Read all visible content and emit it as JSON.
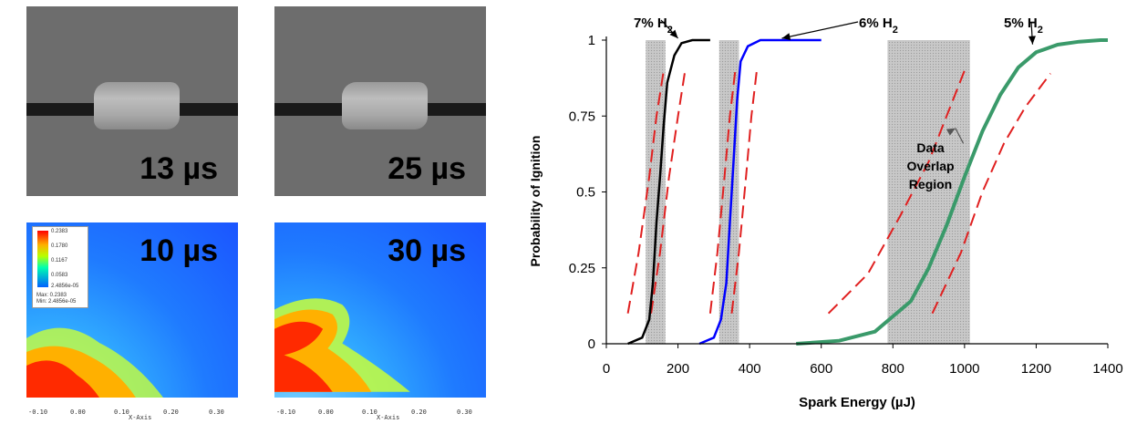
{
  "photos": [
    {
      "label": "13 µs"
    },
    {
      "label": "25 µs"
    }
  ],
  "simulations": [
    {
      "label": "10 µs"
    },
    {
      "label": "30 µs"
    }
  ],
  "sim_legend": {
    "values": [
      "0.2383",
      "0.1780",
      "0.1167",
      "0.0583",
      "2.4856e-05"
    ],
    "max": "Max: 0.2383",
    "min": "Min: 2.4856e-05"
  },
  "sim_axis": {
    "ticks": [
      "-0.10",
      "0.00",
      "0.10",
      "0.20",
      "0.30"
    ],
    "xlabel": "X-Axis"
  },
  "chart_data": {
    "type": "line",
    "xlabel": "Spark Energy (µJ)",
    "ylabel": "Probability of Ignition",
    "xlim": [
      0,
      1400
    ],
    "ylim": [
      0,
      1
    ],
    "xticks": [
      0,
      200,
      400,
      600,
      800,
      1000,
      1200,
      1400
    ],
    "yticks": [
      0,
      0.25,
      0.5,
      0.75,
      1
    ],
    "ytick_labels": [
      "0",
      "0.25",
      "0.5",
      "0.75",
      "1"
    ],
    "series": [
      {
        "name": "7% H",
        "sub": "2",
        "color": "#000000",
        "x": [
          60,
          100,
          120,
          130,
          140,
          150,
          160,
          170,
          190,
          210,
          240,
          290
        ],
        "y": [
          0,
          0.02,
          0.08,
          0.2,
          0.4,
          0.55,
          0.72,
          0.86,
          0.95,
          0.99,
          1,
          1
        ]
      },
      {
        "name": "6% H",
        "sub": "2",
        "color": "#0000ff",
        "x": [
          260,
          300,
          320,
          335,
          345,
          355,
          365,
          375,
          395,
          430,
          500,
          600
        ],
        "y": [
          0,
          0.02,
          0.08,
          0.2,
          0.4,
          0.6,
          0.8,
          0.93,
          0.98,
          1,
          1,
          1
        ]
      },
      {
        "name": "5% H",
        "sub": "2",
        "color": "#3a9a6a",
        "x": [
          530,
          650,
          750,
          850,
          900,
          950,
          1000,
          1050,
          1100,
          1150,
          1200,
          1260,
          1320,
          1380,
          1400
        ],
        "y": [
          0,
          0.01,
          0.04,
          0.14,
          0.25,
          0.39,
          0.55,
          0.7,
          0.82,
          0.91,
          0.96,
          0.985,
          0.995,
          1,
          1
        ]
      }
    ],
    "bounds": [
      {
        "x": [
          60,
          90,
          120,
          140,
          160
        ],
        "y": [
          0.1,
          0.3,
          0.55,
          0.75,
          0.9
        ]
      },
      {
        "x": [
          125,
          150,
          175,
          200,
          220
        ],
        "y": [
          0.1,
          0.3,
          0.55,
          0.75,
          0.9
        ]
      },
      {
        "x": [
          290,
          310,
          330,
          345,
          360
        ],
        "y": [
          0.1,
          0.3,
          0.55,
          0.75,
          0.9
        ]
      },
      {
        "x": [
          350,
          370,
          390,
          405,
          420
        ],
        "y": [
          0.1,
          0.3,
          0.55,
          0.75,
          0.9
        ]
      },
      {
        "x": [
          620,
          730,
          820,
          900,
          950,
          1000
        ],
        "y": [
          0.1,
          0.23,
          0.42,
          0.6,
          0.75,
          0.9
        ]
      },
      {
        "x": [
          910,
          990,
          1050,
          1110,
          1170,
          1240
        ],
        "y": [
          0.1,
          0.3,
          0.5,
          0.66,
          0.78,
          0.89
        ]
      }
    ],
    "overlap_regions": [
      [
        110,
        165
      ],
      [
        315,
        370
      ],
      [
        785,
        1015
      ]
    ],
    "annotations": [
      {
        "text": "Data",
        "x": 905,
        "y": 0.63
      },
      {
        "text": "Overlap",
        "x": 905,
        "y": 0.57
      },
      {
        "text": "Region",
        "x": 905,
        "y": 0.51
      }
    ]
  }
}
